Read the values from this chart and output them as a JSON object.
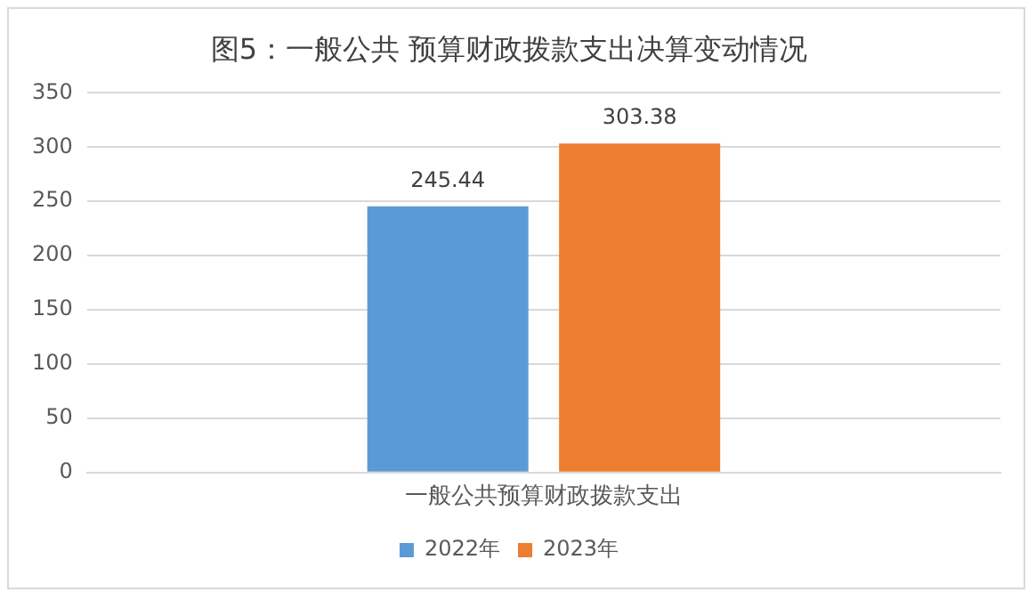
{
  "chart_data": {
    "type": "bar",
    "title": "图5：一般公共 预算财政拨款支出决算变动情况",
    "categories": [
      "一般公共预算财政拨款支出"
    ],
    "series": [
      {
        "name": "2022年",
        "color": "#5b9bd5",
        "values": [
          245.44
        ]
      },
      {
        "name": "2023年",
        "color": "#ed7d31",
        "values": [
          303.38
        ]
      }
    ],
    "ylim": [
      0,
      350
    ],
    "yticks": [
      0,
      50,
      100,
      150,
      200,
      250,
      300,
      350
    ],
    "grid": "y",
    "legend": "bottom",
    "data_labels": true
  }
}
